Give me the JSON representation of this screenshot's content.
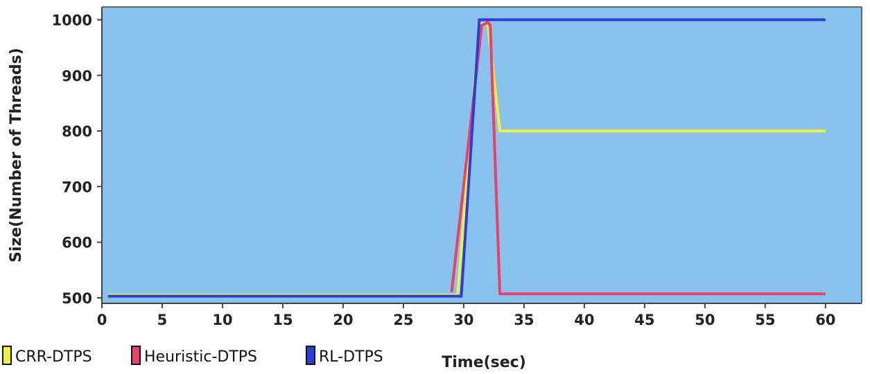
{
  "chart_data": {
    "type": "line",
    "title": "",
    "xlabel": "Time(sec)",
    "ylabel": "Size(Number of Threads)",
    "xlim": [
      0,
      63
    ],
    "ylim": [
      490,
      1023
    ],
    "xticks": [
      0,
      5,
      10,
      15,
      20,
      25,
      30,
      35,
      40,
      45,
      50,
      55,
      60
    ],
    "yticks": [
      500,
      600,
      700,
      800,
      900,
      1000
    ],
    "grid": false,
    "legend_position": "bottom-left",
    "background_color": "#87c3ec",
    "series": [
      {
        "name": "CRR-DTPS",
        "color": "#f2f238",
        "points": [
          [
            0.5,
            505
          ],
          [
            29.5,
            505
          ],
          [
            31.3,
            993
          ],
          [
            32,
            993
          ],
          [
            32.5,
            895
          ],
          [
            33,
            800
          ],
          [
            60,
            800
          ]
        ]
      },
      {
        "name": "Heuristic-DTPS",
        "color": "#ee3f66",
        "points": [
          [
            29,
            510
          ],
          [
            31.5,
            990
          ],
          [
            32,
            995
          ],
          [
            32.2,
            990
          ],
          [
            33,
            507
          ],
          [
            60,
            507
          ]
        ]
      },
      {
        "name": "RL-DTPS",
        "color": "#2b3bdc",
        "points": [
          [
            0.5,
            503
          ],
          [
            29.8,
            503
          ],
          [
            31.3,
            1000
          ],
          [
            60,
            1000
          ]
        ]
      }
    ]
  }
}
